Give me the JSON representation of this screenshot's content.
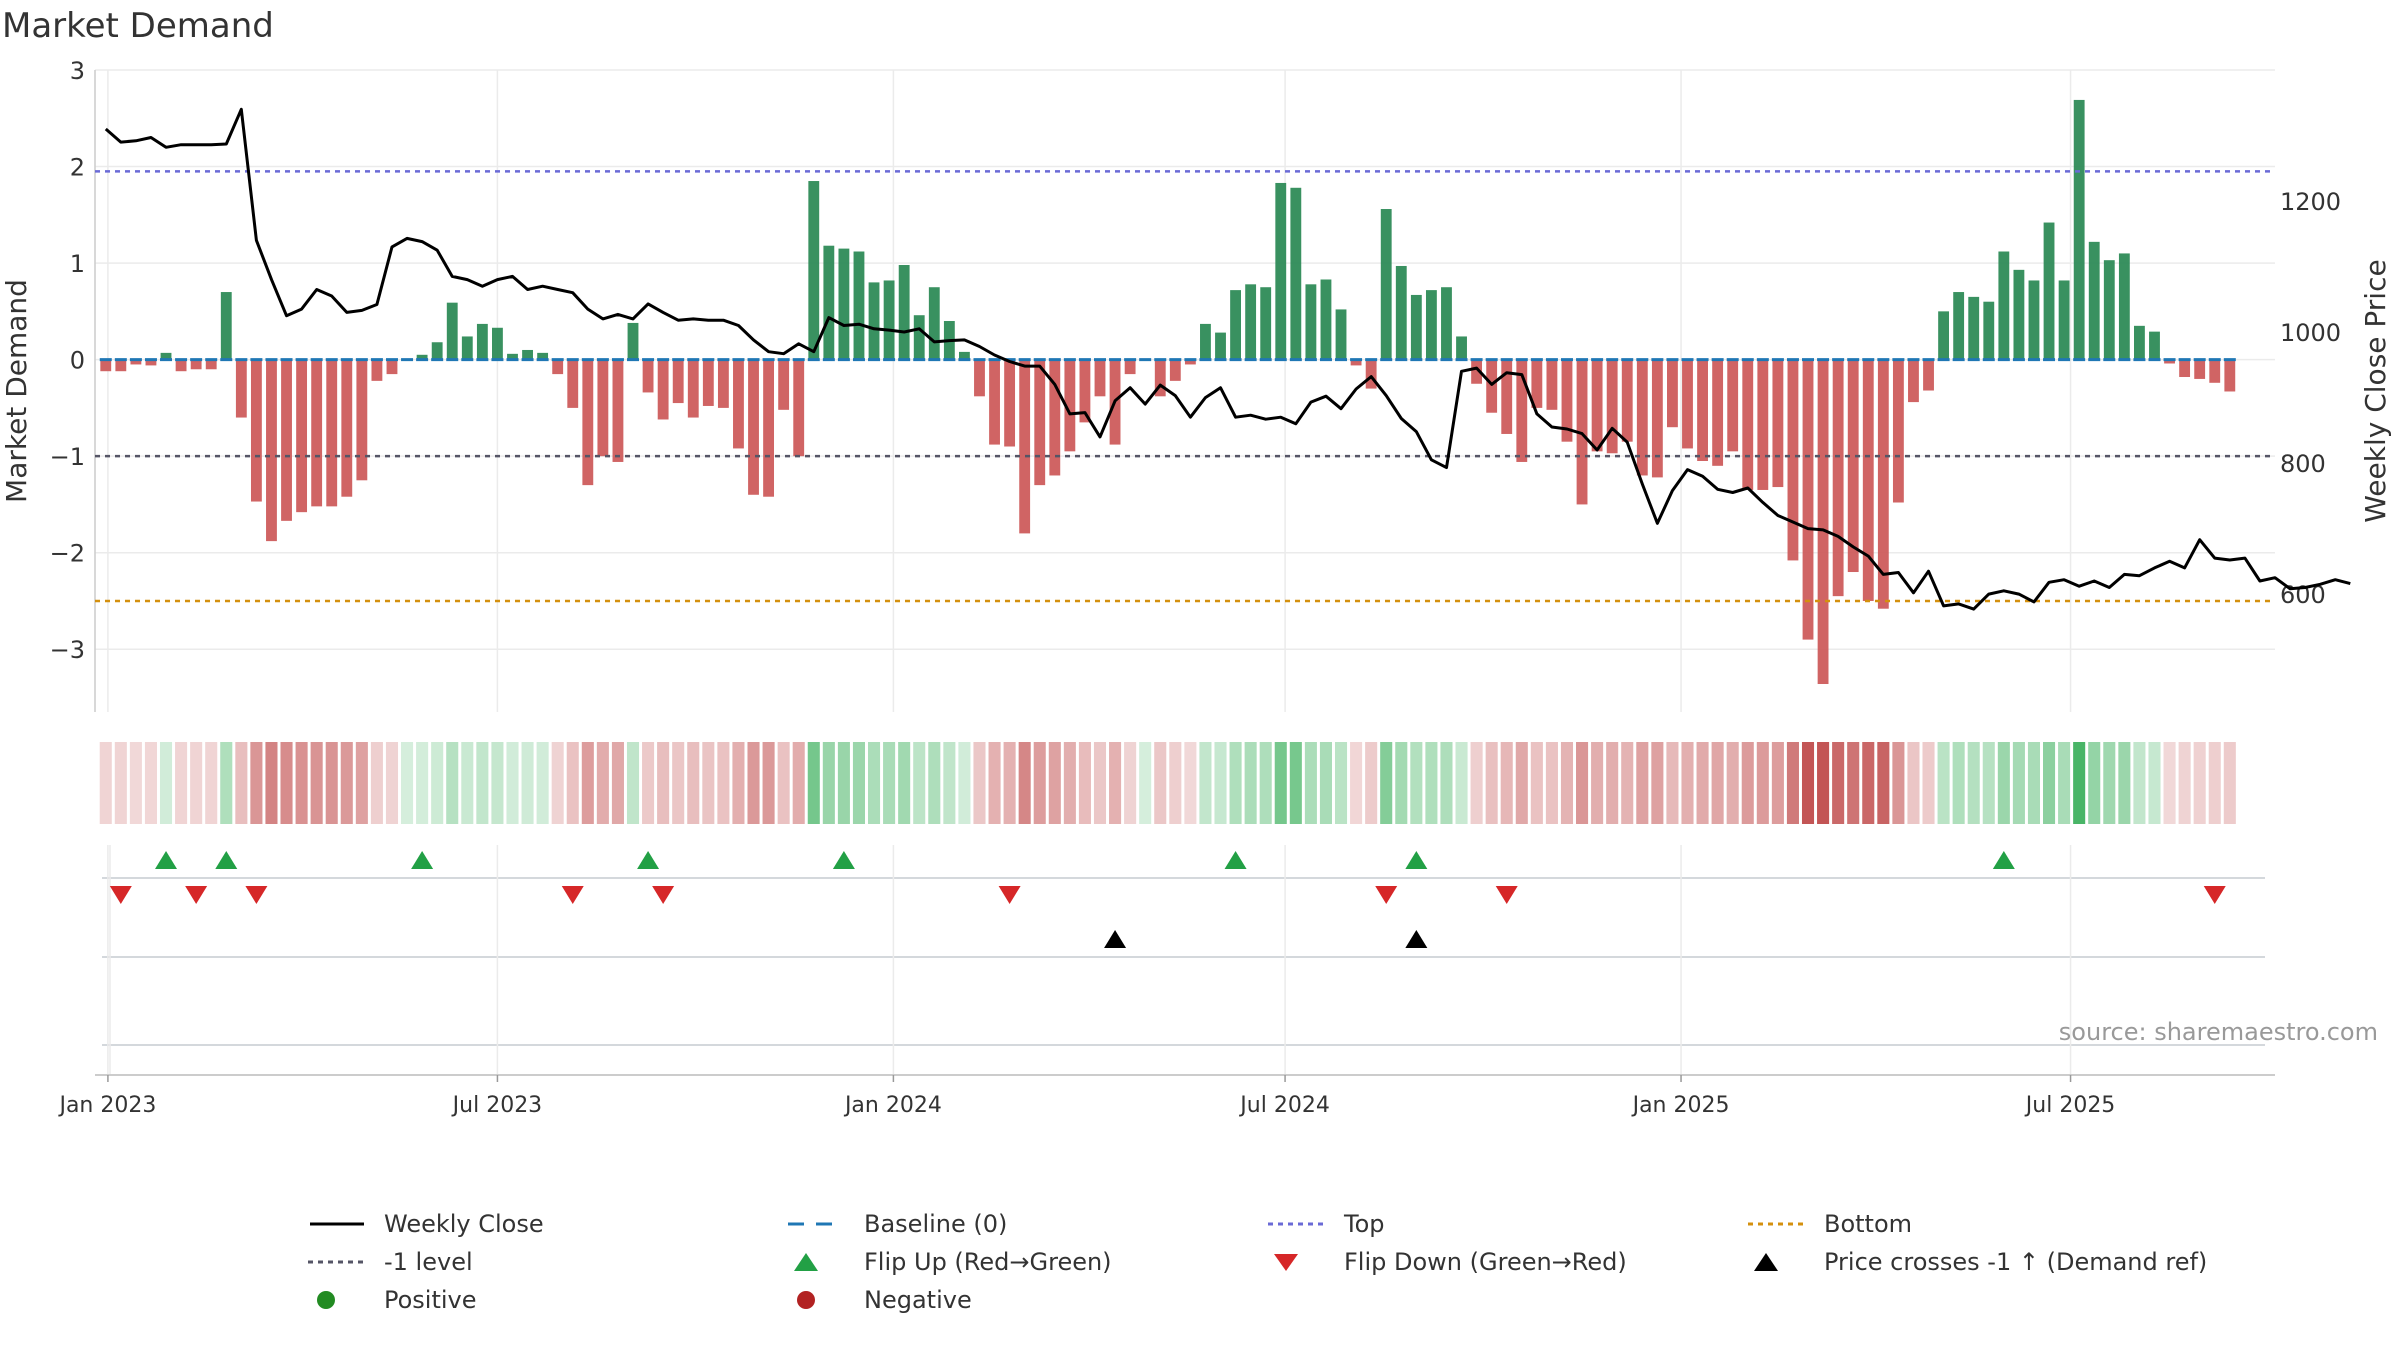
{
  "title": "Market Demand",
  "source_text": "source: sharemaestro.com",
  "colors": {
    "positive": "#2e8b57",
    "negative": "#cd5c5c",
    "close_line": "#000000",
    "baseline": "#1f77b4",
    "top": "#6a6ad6",
    "bottom": "#d4900e",
    "minus1": "#555566",
    "flip_up": "#22a045",
    "flip_down": "#d62728"
  },
  "chart_data": {
    "type": "bar",
    "title": "Market Demand",
    "ylabel": "Market Demand",
    "y2label": "Weekly Close Price",
    "x_range": [
      "2022-12-26",
      "2025-10-04"
    ],
    "ylim": [
      -3.65,
      3.0
    ],
    "y2lim": [
      420,
      1400
    ],
    "yticks": [
      -3,
      -2,
      -1,
      0,
      1,
      2,
      3
    ],
    "y2ticks": [
      600,
      800,
      1000,
      1200
    ],
    "xticks": [
      {
        "date": "2023-01-01",
        "label": "Jan 2023"
      },
      {
        "date": "2023-07-01",
        "label": "Jul 2023"
      },
      {
        "date": "2024-01-01",
        "label": "Jan 2024"
      },
      {
        "date": "2024-07-01",
        "label": "Jul 2024"
      },
      {
        "date": "2025-01-01",
        "label": "Jan 2025"
      },
      {
        "date": "2025-07-01",
        "label": "Jul 2025"
      }
    ],
    "first_week": "2022-12-31",
    "week_step_days": 7,
    "reference_lines": {
      "baseline": 0,
      "top": 1.95,
      "bottom": -2.5,
      "minus1": -1
    },
    "demand": [
      -0.12,
      -0.12,
      -0.05,
      -0.06,
      0.07,
      -0.12,
      -0.1,
      -0.1,
      0.7,
      -0.6,
      -1.47,
      -1.88,
      -1.67,
      -1.58,
      -1.52,
      -1.52,
      -1.42,
      -1.25,
      -0.22,
      -0.15,
      0.0,
      0.05,
      0.18,
      0.59,
      0.24,
      0.37,
      0.33,
      0.06,
      0.1,
      0.07,
      -0.15,
      -0.5,
      -1.3,
      -1.0,
      -1.06,
      0.38,
      -0.34,
      -0.62,
      -0.45,
      -0.6,
      -0.48,
      -0.5,
      -0.92,
      -1.4,
      -1.42,
      -0.52,
      -1.0,
      1.85,
      1.18,
      1.15,
      1.12,
      0.8,
      0.82,
      0.98,
      0.46,
      0.75,
      0.4,
      0.08,
      -0.38,
      -0.88,
      -0.9,
      -1.8,
      -1.3,
      -1.2,
      -0.95,
      -0.65,
      -0.38,
      -0.88,
      -0.15,
      0.0,
      -0.38,
      -0.22,
      -0.05,
      0.37,
      0.28,
      0.72,
      0.78,
      0.75,
      1.83,
      1.78,
      0.78,
      0.83,
      0.52,
      -0.06,
      -0.3,
      1.56,
      0.97,
      0.67,
      0.72,
      0.75,
      0.24,
      -0.25,
      -0.55,
      -0.77,
      -1.06,
      -0.5,
      -0.52,
      -0.85,
      -1.5,
      -0.95,
      -0.97,
      -0.85,
      -1.2,
      -1.22,
      -0.7,
      -0.92,
      -1.05,
      -1.1,
      -0.95,
      -1.35,
      -1.35,
      -1.32,
      -2.08,
      -2.9,
      -3.36,
      -2.45,
      -2.2,
      -2.5,
      -2.58,
      -1.48,
      -0.44,
      -0.32,
      0.5,
      0.7,
      0.65,
      0.6,
      1.12,
      0.93,
      0.82,
      1.42,
      0.82,
      2.69,
      1.22,
      1.03,
      1.1,
      0.35,
      0.29,
      -0.04,
      -0.18,
      -0.2,
      -0.24,
      -0.33
    ],
    "weekly_close": [
      1310,
      1290,
      1292,
      1297,
      1282,
      1286,
      1286,
      1286,
      1287,
      1340,
      1140,
      1080,
      1025,
      1035,
      1065,
      1055,
      1030,
      1033,
      1042,
      1130,
      1143,
      1138,
      1125,
      1085,
      1080,
      1070,
      1080,
      1085,
      1065,
      1070,
      1065,
      1060,
      1035,
      1020,
      1027,
      1020,
      1043,
      1030,
      1018,
      1020,
      1018,
      1018,
      1010,
      988,
      970,
      967,
      982,
      970,
      1022,
      1010,
      1012,
      1005,
      1003,
      1000,
      1005,
      985,
      987,
      988,
      978,
      965,
      955,
      948,
      948,
      920,
      875,
      877,
      840,
      895,
      915,
      890,
      919,
      903,
      870,
      900,
      915,
      870,
      873,
      867,
      870,
      860,
      893,
      902,
      883,
      913,
      932,
      903,
      868,
      848,
      805,
      793,
      940,
      945,
      920,
      938,
      935,
      875,
      855,
      852,
      845,
      820,
      853,
      832,
      768,
      708,
      758,
      790,
      780,
      760,
      755,
      762,
      740,
      720,
      710,
      700,
      698,
      688,
      672,
      658,
      630,
      633,
      602,
      635,
      582,
      585,
      577,
      600,
      605,
      600,
      588,
      618,
      622,
      612,
      620,
      610,
      630,
      628,
      640,
      650,
      640,
      683,
      655,
      652,
      655,
      620,
      625,
      608,
      610,
      615,
      622,
      616
    ],
    "heat_strip": [
      -0.12,
      -0.12,
      -0.05,
      -0.06,
      0.07,
      -0.12,
      -0.1,
      -0.1,
      0.7,
      -0.6,
      -1.47,
      -1.88,
      -1.67,
      -1.58,
      -1.52,
      -1.52,
      -1.42,
      -1.25,
      -0.22,
      -0.15,
      0.0,
      0.05,
      0.18,
      0.59,
      0.24,
      0.37,
      0.33,
      0.06,
      0.1,
      0.07,
      -0.15,
      -0.5,
      -1.3,
      -1.0,
      -1.06,
      0.38,
      -0.34,
      -0.62,
      -0.45,
      -0.6,
      -0.48,
      -0.5,
      -0.92,
      -1.4,
      -1.42,
      -0.52,
      -1.0,
      1.85,
      1.18,
      1.15,
      1.12,
      0.8,
      0.82,
      0.98,
      0.46,
      0.75,
      0.4,
      0.08,
      -0.38,
      -0.88,
      -0.9,
      -1.8,
      -1.3,
      -1.2,
      -0.95,
      -0.65,
      -0.38,
      -0.88,
      -0.15,
      0.0,
      -0.38,
      -0.22,
      -0.05,
      0.37,
      0.28,
      0.72,
      0.78,
      0.75,
      1.83,
      1.78,
      0.78,
      0.83,
      0.52,
      -0.06,
      -0.3,
      1.56,
      0.97,
      0.67,
      0.72,
      0.75,
      0.24,
      -0.25,
      -0.55,
      -0.77,
      -1.06,
      -0.5,
      -0.52,
      -0.85,
      -1.5,
      -0.95,
      -0.97,
      -0.85,
      -1.2,
      -1.22,
      -0.7,
      -0.92,
      -1.05,
      -1.1,
      -0.95,
      -1.35,
      -1.35,
      -1.32,
      -2.08,
      -2.9,
      -3.36,
      -2.45,
      -2.2,
      -2.5,
      -2.58,
      -1.48,
      -0.44,
      -0.32,
      0.5,
      0.7,
      0.65,
      0.6,
      1.12,
      0.93,
      0.82,
      1.42,
      0.82,
      2.69,
      1.22,
      1.03,
      1.1,
      0.35,
      0.29,
      -0.04,
      -0.18,
      -0.2,
      -0.24,
      -0.33
    ],
    "flip_up_dates": [
      "2023-01-28",
      "2023-02-25",
      "2023-05-27",
      "2023-09-09",
      "2023-12-09",
      "2024-06-08",
      "2024-08-31",
      "2025-05-31"
    ],
    "flip_down_dates": [
      "2023-01-07",
      "2023-02-11",
      "2023-03-11",
      "2023-08-05",
      "2023-09-16",
      "2024-02-24",
      "2024-08-17",
      "2024-10-12",
      "2025-09-06"
    ],
    "price_cross_dates": [
      "2024-04-13",
      "2024-08-31"
    ]
  },
  "legend": [
    {
      "key": "weekly_close",
      "label": "Weekly Close",
      "symbol": "line-solid",
      "color": "#000000"
    },
    {
      "key": "baseline",
      "label": "Baseline (0)",
      "symbol": "line-dash",
      "color": "#1f77b4"
    },
    {
      "key": "top",
      "label": "Top",
      "symbol": "line-dot",
      "color": "#6a6ad6"
    },
    {
      "key": "bottom",
      "label": "Bottom",
      "symbol": "line-dot",
      "color": "#d4900e"
    },
    {
      "key": "minus1",
      "label": "-1 level",
      "symbol": "line-dot",
      "color": "#555566"
    },
    {
      "key": "flip_up",
      "label": "Flip Up (Red→Green)",
      "symbol": "triangle-up",
      "color": "#22a045"
    },
    {
      "key": "flip_down",
      "label": "Flip Down (Green→Red)",
      "symbol": "triangle-down",
      "color": "#d62728"
    },
    {
      "key": "price_cross",
      "label": "Price crosses -1 ↑ (Demand ref)",
      "symbol": "triangle-up",
      "color": "#000000"
    },
    {
      "key": "positive",
      "label": "Positive",
      "symbol": "circle",
      "color": "#228b22"
    },
    {
      "key": "negative",
      "label": "Negative",
      "symbol": "circle",
      "color": "#b22222"
    }
  ]
}
